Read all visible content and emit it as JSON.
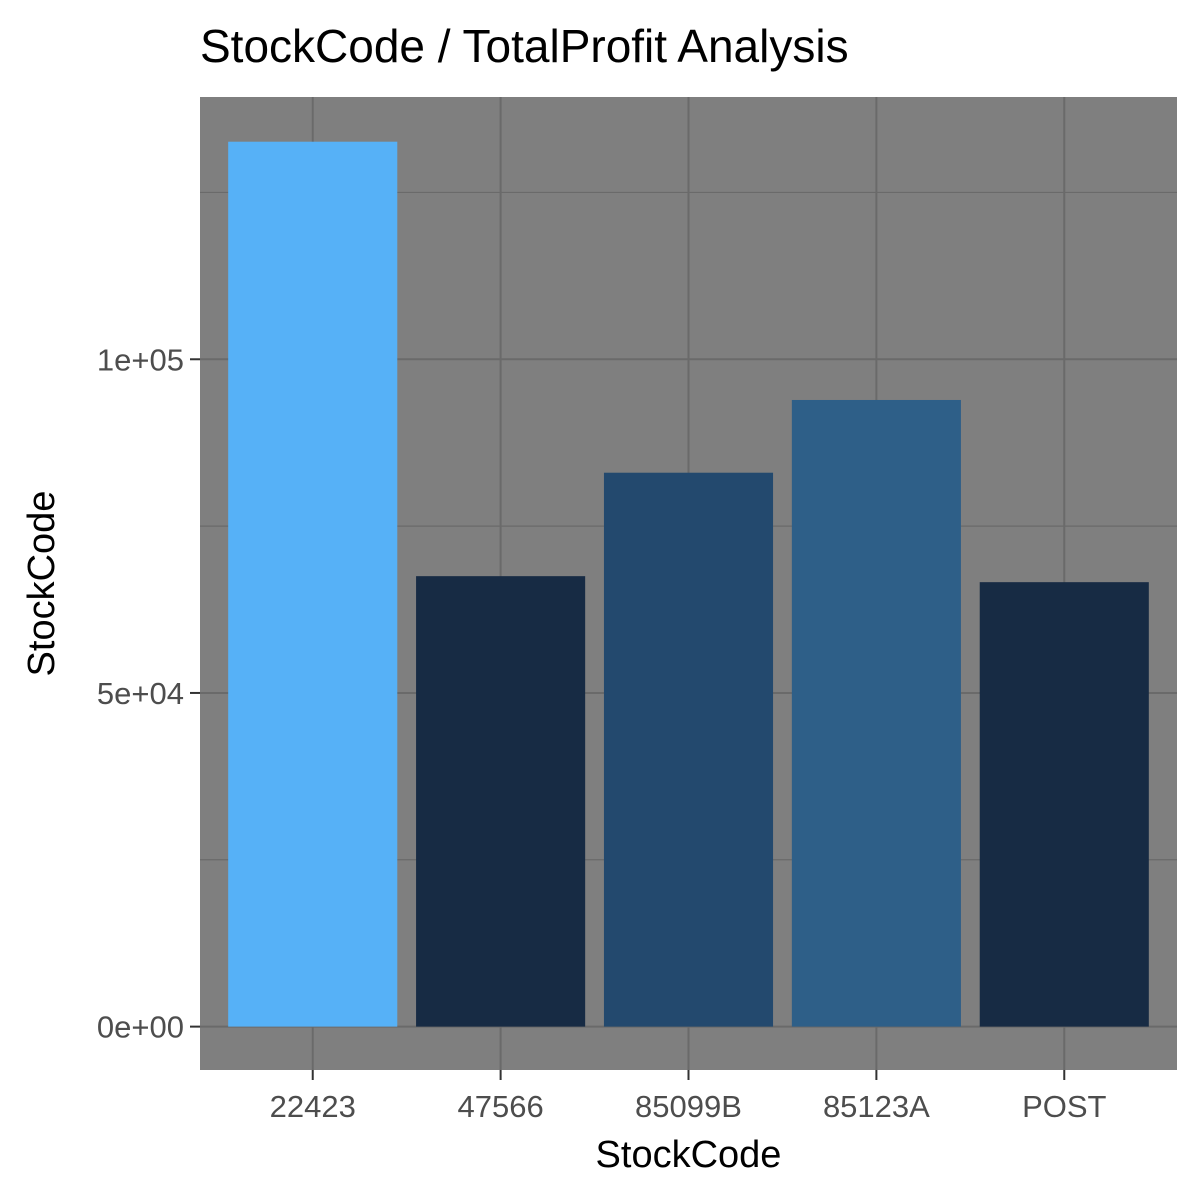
{
  "chart_data": {
    "type": "bar",
    "title": "StockCode / TotalProfit Analysis",
    "xlabel": "StockCode",
    "ylabel": "StockCode",
    "categories": [
      "22423",
      "47566",
      "85099B",
      "85123A",
      "POST"
    ],
    "values": [
      132600,
      67500,
      83000,
      93900,
      66600
    ],
    "ylim": [
      -6500,
      139300
    ],
    "yticks": [
      0,
      50000,
      100000
    ],
    "ytick_labels": [
      "0e+00",
      "5e+04",
      "1e+05"
    ],
    "bar_colors": [
      "#56B1F7",
      "#172B44",
      "#23496E",
      "#2E5F88",
      "#172B44"
    ],
    "panel_background": "#7F7F7F",
    "grid": true,
    "grid_color": "#6A6A6A",
    "legend": "none"
  }
}
